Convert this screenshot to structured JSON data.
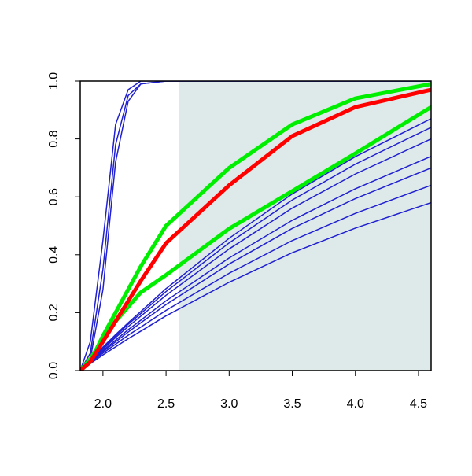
{
  "chart_data": {
    "type": "line",
    "x": [
      1.82,
      1.9,
      2.0,
      2.1,
      2.2,
      2.3,
      2.5,
      3.0,
      3.5,
      4.0,
      4.6
    ],
    "xlim": [
      1.82,
      4.6
    ],
    "ylim": [
      0,
      1
    ],
    "xticks": [
      2.0,
      2.5,
      3.0,
      3.5,
      4.0,
      4.5
    ],
    "yticks": [
      0.0,
      0.2,
      0.4,
      0.6,
      0.8,
      1.0
    ],
    "shaded_region": {
      "from": 2.6,
      "to": 4.6,
      "color": "#deeaea"
    },
    "series": [
      {
        "color": "#2020d0",
        "line_width": 1.5,
        "values": [
          0,
          0.1,
          0.45,
          0.85,
          0.97,
          1,
          1,
          1,
          1,
          1,
          1
        ]
      },
      {
        "color": "#2020d0",
        "line_width": 1.5,
        "values": [
          0,
          0.06,
          0.35,
          0.78,
          0.95,
          0.99,
          1,
          1,
          1,
          1,
          1
        ]
      },
      {
        "color": "#2020d0",
        "line_width": 1.5,
        "values": [
          0,
          0.04,
          0.28,
          0.72,
          0.93,
          0.99,
          1,
          1,
          1,
          1,
          1
        ]
      },
      {
        "color": "#2020d0",
        "line_width": 1.5,
        "values": [
          0,
          0.037,
          0.081,
          0.124,
          0.165,
          0.204,
          0.283,
          0.457,
          0.61,
          0.739,
          0.87
        ]
      },
      {
        "color": "#2020d0",
        "line_width": 1.5,
        "values": [
          0,
          0.035,
          0.078,
          0.119,
          0.16,
          0.197,
          0.273,
          0.441,
          0.589,
          0.713,
          0.84
        ]
      },
      {
        "color": "#2020d0",
        "line_width": 1.5,
        "values": [
          0,
          0.034,
          0.074,
          0.114,
          0.152,
          0.188,
          0.26,
          0.42,
          0.561,
          0.679,
          0.8
        ]
      },
      {
        "color": "#2020d0",
        "line_width": 1.5,
        "values": [
          0,
          0.031,
          0.069,
          0.105,
          0.141,
          0.174,
          0.241,
          0.389,
          0.519,
          0.628,
          0.74
        ]
      },
      {
        "color": "#2020d0",
        "line_width": 1.5,
        "values": [
          0,
          0.029,
          0.065,
          0.099,
          0.133,
          0.165,
          0.228,
          0.368,
          0.491,
          0.594,
          0.7
        ]
      },
      {
        "color": "#2020d0",
        "line_width": 1.5,
        "values": [
          0,
          0.027,
          0.06,
          0.091,
          0.122,
          0.15,
          0.208,
          0.336,
          0.449,
          0.543,
          0.64
        ]
      },
      {
        "color": "#2020d0",
        "line_width": 1.5,
        "values": [
          0,
          0.024,
          0.054,
          0.082,
          0.11,
          0.136,
          0.189,
          0.305,
          0.407,
          0.492,
          0.58
        ]
      },
      {
        "color": "#00ee00",
        "line_width": 5,
        "values": [
          0,
          0.04,
          0.11,
          0.17,
          0.22,
          0.27,
          0.33,
          0.49,
          0.62,
          0.75,
          0.91
        ]
      },
      {
        "color": "#00ee00",
        "line_width": 5,
        "values": [
          0,
          0.03,
          0.12,
          0.2,
          0.28,
          0.36,
          0.5,
          0.7,
          0.85,
          0.94,
          0.99
        ]
      },
      {
        "color": "#ff0000",
        "line_width": 5,
        "values": [
          0,
          0.03,
          0.1,
          0.17,
          0.24,
          0.31,
          0.44,
          0.64,
          0.81,
          0.91,
          0.97
        ]
      }
    ]
  }
}
